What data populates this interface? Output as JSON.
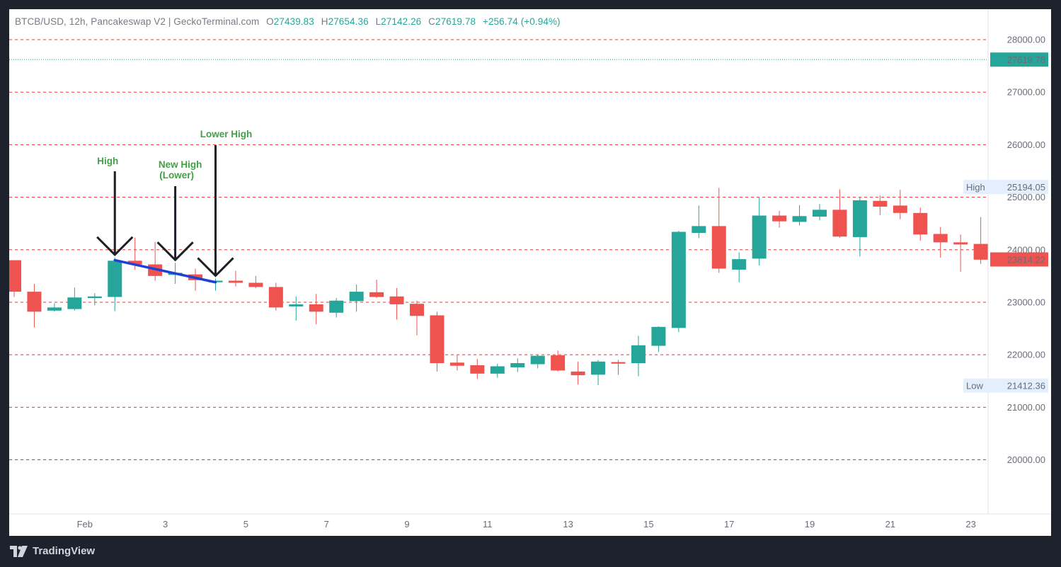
{
  "header": {
    "symbol": "BTCB/USD, 12h, Pancakeswap V2 | GeckoTerminal.com",
    "o_label": "O",
    "o_value": "27439.83",
    "h_label": "H",
    "h_value": "27654.36",
    "l_label": "L",
    "l_value": "27142.26",
    "c_label": "C",
    "c_value": "27619.78",
    "change": "+256.74 (+0.94%)"
  },
  "brand": {
    "name": "TradingView",
    "icon": "tradingview-logo-icon"
  },
  "colors": {
    "up": "#26a69a",
    "down": "#ef5350",
    "grid": "#e53935",
    "last_price": "#26a69a",
    "trendline": "#1e40d6",
    "annotation": "#43a047",
    "background": "#ffffff",
    "frame": "#1e222d"
  },
  "chart_data": {
    "type": "candlestick",
    "interval": "12h",
    "ylim": [
      19300,
      28400
    ],
    "yticks": [
      "28000.00",
      "27000.00",
      "26000.00",
      "25000.00",
      "24000.00",
      "23000.00",
      "22000.00",
      "21000.00",
      "20000.00"
    ],
    "ytick_values": [
      28000,
      27000,
      26000,
      25000,
      24000,
      23000,
      22000,
      21000,
      20000
    ],
    "grid": true,
    "xtick_labels": [
      "Feb",
      "3",
      "5",
      "7",
      "9",
      "11",
      "13",
      "15",
      "17",
      "19",
      "21",
      "23"
    ],
    "xtick_candle_index": [
      4,
      8,
      12,
      16,
      20,
      24,
      28,
      32,
      36,
      40,
      44,
      48
    ],
    "candles": [
      {
        "o": 23800,
        "h": 23800,
        "l": 23100,
        "c": 23200
      },
      {
        "o": 23200,
        "h": 23350,
        "l": 22520,
        "c": 22820
      },
      {
        "o": 22840,
        "h": 22980,
        "l": 22820,
        "c": 22900
      },
      {
        "o": 22870,
        "h": 23280,
        "l": 22840,
        "c": 23090
      },
      {
        "o": 23080,
        "h": 23170,
        "l": 22940,
        "c": 23110
      },
      {
        "o": 23100,
        "h": 23850,
        "l": 22830,
        "c": 23790
      },
      {
        "o": 23790,
        "h": 24230,
        "l": 23620,
        "c": 23720
      },
      {
        "o": 23720,
        "h": 24150,
        "l": 23410,
        "c": 23500
      },
      {
        "o": 23520,
        "h": 23750,
        "l": 23350,
        "c": 23560
      },
      {
        "o": 23530,
        "h": 23640,
        "l": 23220,
        "c": 23420
      },
      {
        "o": 23380,
        "h": 23450,
        "l": 23220,
        "c": 23410
      },
      {
        "o": 23410,
        "h": 23600,
        "l": 23300,
        "c": 23370
      },
      {
        "o": 23370,
        "h": 23500,
        "l": 23270,
        "c": 23290
      },
      {
        "o": 23290,
        "h": 23370,
        "l": 22840,
        "c": 22900
      },
      {
        "o": 22920,
        "h": 23110,
        "l": 22650,
        "c": 22960
      },
      {
        "o": 22960,
        "h": 23160,
        "l": 22580,
        "c": 22820
      },
      {
        "o": 22800,
        "h": 23080,
        "l": 22710,
        "c": 23030
      },
      {
        "o": 23020,
        "h": 23340,
        "l": 22820,
        "c": 23200
      },
      {
        "o": 23190,
        "h": 23430,
        "l": 23080,
        "c": 23100
      },
      {
        "o": 23110,
        "h": 23270,
        "l": 22670,
        "c": 22960
      },
      {
        "o": 22970,
        "h": 23030,
        "l": 22370,
        "c": 22740
      },
      {
        "o": 22750,
        "h": 22820,
        "l": 21680,
        "c": 21840
      },
      {
        "o": 21850,
        "h": 21990,
        "l": 21700,
        "c": 21790
      },
      {
        "o": 21800,
        "h": 21920,
        "l": 21540,
        "c": 21640
      },
      {
        "o": 21640,
        "h": 21830,
        "l": 21560,
        "c": 21780
      },
      {
        "o": 21760,
        "h": 21930,
        "l": 21670,
        "c": 21840
      },
      {
        "o": 21820,
        "h": 22000,
        "l": 21740,
        "c": 21980
      },
      {
        "o": 21990,
        "h": 22080,
        "l": 21680,
        "c": 21700
      },
      {
        "o": 21680,
        "h": 21870,
        "l": 21430,
        "c": 21610
      },
      {
        "o": 21620,
        "h": 21900,
        "l": 21420,
        "c": 21870
      },
      {
        "o": 21860,
        "h": 21900,
        "l": 21620,
        "c": 21830
      },
      {
        "o": 21840,
        "h": 22360,
        "l": 21590,
        "c": 22180
      },
      {
        "o": 22170,
        "h": 22540,
        "l": 22050,
        "c": 22530
      },
      {
        "o": 22510,
        "h": 24360,
        "l": 22430,
        "c": 24340
      },
      {
        "o": 24320,
        "h": 24840,
        "l": 24220,
        "c": 24450
      },
      {
        "o": 24450,
        "h": 25180,
        "l": 23560,
        "c": 23640
      },
      {
        "o": 23620,
        "h": 23950,
        "l": 23380,
        "c": 23820
      },
      {
        "o": 23830,
        "h": 25000,
        "l": 23700,
        "c": 24650
      },
      {
        "o": 24650,
        "h": 24740,
        "l": 24420,
        "c": 24540
      },
      {
        "o": 24530,
        "h": 24850,
        "l": 24460,
        "c": 24640
      },
      {
        "o": 24630,
        "h": 24870,
        "l": 24560,
        "c": 24760
      },
      {
        "o": 24760,
        "h": 25150,
        "l": 24230,
        "c": 24250
      },
      {
        "o": 24240,
        "h": 25000,
        "l": 23870,
        "c": 24940
      },
      {
        "o": 24930,
        "h": 25030,
        "l": 24660,
        "c": 24820
      },
      {
        "o": 24840,
        "h": 25140,
        "l": 24580,
        "c": 24700
      },
      {
        "o": 24700,
        "h": 24800,
        "l": 24170,
        "c": 24290
      },
      {
        "o": 24300,
        "h": 24430,
        "l": 23850,
        "c": 24140
      },
      {
        "o": 24140,
        "h": 24290,
        "l": 23580,
        "c": 24100
      },
      {
        "o": 24110,
        "h": 24620,
        "l": 23730,
        "c": 23810
      }
    ],
    "high_label": {
      "text": "High",
      "value": "25194.05"
    },
    "low_label": {
      "text": "Low",
      "value": "21412.36"
    },
    "last_price_line": {
      "value": 27619.78,
      "text": "27619.78"
    },
    "current_price_tag": {
      "value": 23814.22,
      "text": "23814.22"
    },
    "trendline": {
      "from_candle": 5,
      "from_price": 23800,
      "to_candle": 10,
      "to_price": 23380
    },
    "annotations": [
      {
        "text": "High",
        "candle": 5
      },
      {
        "text": "New High",
        "text2": "(Lower)",
        "candle": 8
      },
      {
        "text": "Lower High",
        "candle": 10
      }
    ]
  }
}
